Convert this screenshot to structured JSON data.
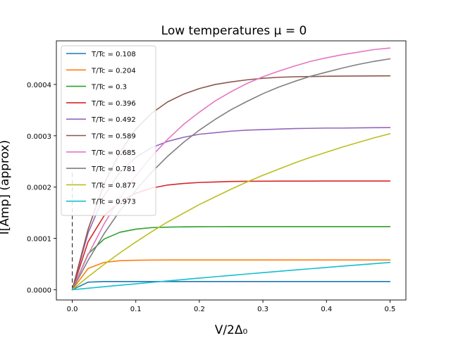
{
  "chart_data": {
    "type": "line",
    "title": "Low temperatures μ = 0",
    "xlabel": "V/2Δ₀",
    "ylabel": "I[Amp] (approx)",
    "xlim": [
      -0.025,
      0.525
    ],
    "ylim": [
      -2e-05,
      0.000485
    ],
    "xticks": [
      0.0,
      0.1,
      0.2,
      0.3,
      0.4,
      0.5
    ],
    "xtick_labels": [
      "0.0",
      "0.1",
      "0.2",
      "0.3",
      "0.4",
      "0.5"
    ],
    "yticks": [
      0.0,
      0.0001,
      0.0002,
      0.0003,
      0.0004
    ],
    "ytick_labels": [
      "0.0000",
      "0.0001",
      "0.0002",
      "0.0003",
      "0.0004"
    ],
    "grid": false,
    "legend_position": "upper-left",
    "annotation": "vertical dashed line at V/2Δ₀ = 0",
    "x": [
      0.0,
      0.025,
      0.05,
      0.075,
      0.1,
      0.125,
      0.15,
      0.175,
      0.2,
      0.225,
      0.25,
      0.275,
      0.3,
      0.325,
      0.35,
      0.375,
      0.4,
      0.425,
      0.45,
      0.475,
      0.5
    ],
    "series": [
      {
        "name": "T/Tc = 0.108",
        "color": "#1f77b4",
        "values": [
          0.0,
          1.47e-05,
          1.6e-05,
          1.6e-05,
          1.6e-05,
          1.6e-05,
          1.6e-05,
          1.6e-05,
          1.6e-05,
          1.6e-05,
          1.6e-05,
          1.6e-05,
          1.6e-05,
          1.6e-05,
          1.6e-05,
          1.6e-05,
          1.6e-05,
          1.6e-05,
          1.6e-05,
          1.6e-05,
          1.6e-05
        ]
      },
      {
        "name": "T/Tc = 0.204",
        "color": "#ff7f0e",
        "values": [
          0.0,
          4.14e-05,
          5.32e-05,
          5.66e-05,
          5.75e-05,
          5.78e-05,
          5.79e-05,
          5.79e-05,
          5.79e-05,
          5.79e-05,
          5.79e-05,
          5.79e-05,
          5.79e-05,
          5.79e-05,
          5.79e-05,
          5.79e-05,
          5.79e-05,
          5.79e-05,
          5.79e-05,
          5.79e-05,
          5.79e-05
        ]
      },
      {
        "name": "T/Tc = 0.3",
        "color": "#2ca02c",
        "values": [
          0.0,
          6.98e-05,
          9.86e-05,
          0.000112,
          0.000118,
          0.000121,
          0.000122,
          0.0001225,
          0.0001228,
          0.0001229,
          0.000123,
          0.000123,
          0.000123,
          0.000123,
          0.000123,
          0.000123,
          0.000123,
          0.000123,
          0.000123,
          0.000123,
          0.000123
        ]
      },
      {
        "name": "T/Tc = 0.396",
        "color": "#d62728",
        "values": [
          0.0,
          9.37e-05,
          0.000144,
          0.000172,
          0.000188,
          0.000198,
          0.000204,
          0.000207,
          0.000209,
          0.00021,
          0.000211,
          0.0002113,
          0.0002115,
          0.0002116,
          0.0002117,
          0.0002117,
          0.0002118,
          0.0002118,
          0.0002118,
          0.0002118,
          0.0002118
        ]
      },
      {
        "name": "T/Tc = 0.492",
        "color": "#9467bd",
        "values": [
          0.0,
          0.000111,
          0.000183,
          0.000229,
          0.000258,
          0.000277,
          0.000289,
          0.000297,
          0.000303,
          0.000306,
          0.000309,
          0.000311,
          0.000312,
          0.000313,
          0.000314,
          0.0003145,
          0.000315,
          0.000315,
          0.0003155,
          0.0003158,
          0.000316
        ]
      },
      {
        "name": "T/Tc = 0.589",
        "color": "#8c564b",
        "values": [
          0.0,
          0.000118,
          0.000206,
          0.000268,
          0.000313,
          0.000344,
          0.000366,
          0.000381,
          0.000392,
          0.0004,
          0.000405,
          0.000409,
          0.000412,
          0.000414,
          0.000415,
          0.0004155,
          0.000416,
          0.0004163,
          0.0004165,
          0.0004167,
          0.0004168
        ]
      },
      {
        "name": "T/Tc = 0.685",
        "color": "#e377c2",
        "values": [
          0.0,
          6.82e-05,
          0.000128,
          0.000179,
          0.000222,
          0.00026,
          0.000293,
          0.000322,
          0.000346,
          0.000368,
          0.000386,
          0.000402,
          0.000415,
          0.000426,
          0.000436,
          0.000445,
          0.000452,
          0.000458,
          0.000463,
          0.000468,
          0.000471
        ]
      },
      {
        "name": "T/Tc = 0.781",
        "color": "#7f7f7f",
        "values": [
          0.0,
          5.73e-05,
          0.000109,
          0.000154,
          0.000194,
          0.000229,
          0.00026,
          0.000287,
          0.000311,
          0.000332,
          0.000351,
          0.000367,
          0.000382,
          0.000395,
          0.000406,
          0.000416,
          0.000424,
          0.000432,
          0.000439,
          0.000445,
          0.00045
        ]
      },
      {
        "name": "T/Tc = 0.877",
        "color": "#bcbd22",
        "values": [
          0.0,
          2.53e-05,
          4.93e-05,
          7.18e-05,
          9.3e-05,
          0.000113,
          0.000132,
          0.000149,
          0.000166,
          0.000181,
          0.000196,
          0.00021,
          0.000223,
          0.000235,
          0.000247,
          0.000258,
          0.000268,
          0.000278,
          0.000287,
          0.000296,
          0.000304
        ]
      },
      {
        "name": "T/Tc = 0.973",
        "color": "#17becf",
        "values": [
          0.0,
          2.9e-06,
          5.8e-06,
          8.7e-06,
          1.15e-05,
          1.43e-05,
          1.71e-05,
          1.99e-05,
          2.26e-05,
          2.53e-05,
          2.8e-05,
          3.06e-05,
          3.32e-05,
          3.58e-05,
          3.84e-05,
          4.09e-05,
          4.34e-05,
          4.59e-05,
          4.84e-05,
          5.08e-05,
          5.32e-05
        ]
      }
    ]
  }
}
